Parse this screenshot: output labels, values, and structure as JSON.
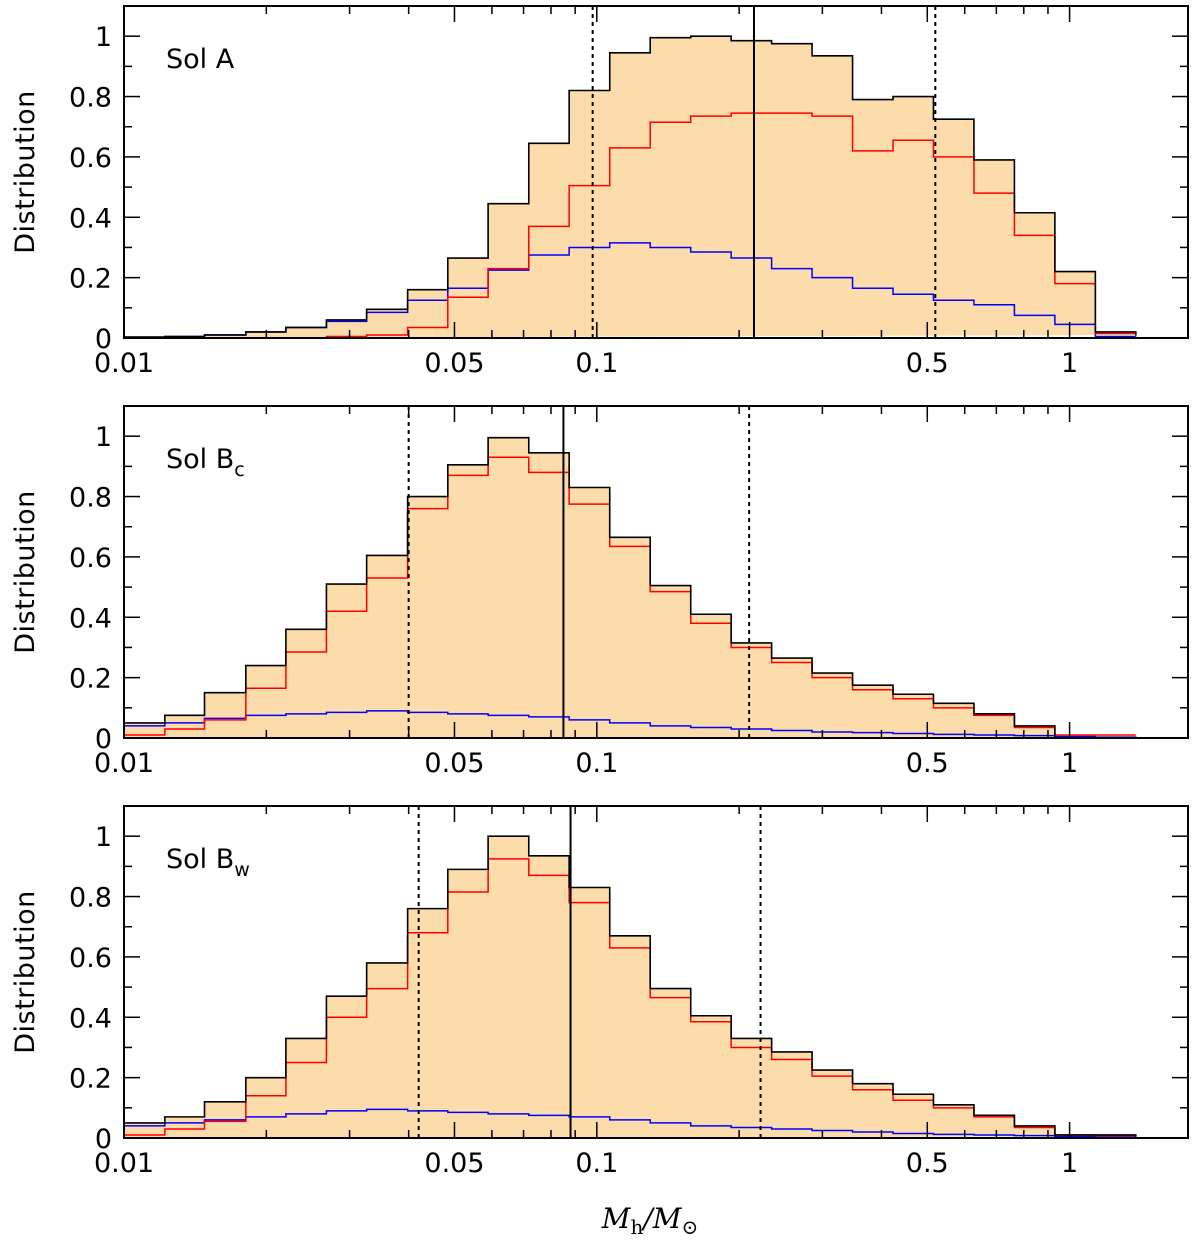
{
  "chart_data": [
    {
      "type": "histogram",
      "panel_label": "Sol A",
      "ylabel": "Distribution",
      "xlabel": "",
      "xscale": "log",
      "xlim": [
        0.01,
        1.78
      ],
      "ylim": [
        0,
        1.1
      ],
      "x_ticks": [
        0.01,
        0.05,
        0.1,
        0.5,
        1
      ],
      "x_tick_labels": [
        "0.01",
        "0.05",
        "0.1",
        "0.5",
        "1"
      ],
      "y_ticks": [
        0,
        0.2,
        0.4,
        0.6,
        0.8,
        1
      ],
      "y_tick_labels": [
        "0",
        "0.2",
        "0.4",
        "0.6",
        "0.8",
        "1"
      ],
      "bin_edges": [
        0.01,
        0.0122,
        0.0148,
        0.0181,
        0.022,
        0.0268,
        0.0326,
        0.0398,
        0.0484,
        0.0589,
        0.0718,
        0.0874,
        0.1065,
        0.1297,
        0.158,
        0.1924,
        0.2343,
        0.2853,
        0.3475,
        0.4232,
        0.5153,
        0.6276,
        0.7643,
        0.9308,
        1.1336,
        1.3805
      ],
      "series": [
        {
          "name": "total",
          "color": "#000000",
          "fill": "#fcdcaa",
          "values": [
            0.003,
            0.005,
            0.01,
            0.02,
            0.035,
            0.06,
            0.095,
            0.16,
            0.265,
            0.445,
            0.645,
            0.82,
            0.945,
            0.995,
            1.0,
            0.985,
            0.975,
            0.935,
            0.79,
            0.8,
            0.725,
            0.59,
            0.415,
            0.22,
            0.02,
            0.01
          ]
        },
        {
          "name": "red",
          "color": "#ff0000",
          "values": [
            0.0,
            0.0,
            0.0,
            0.0,
            0.0,
            0.005,
            0.01,
            0.035,
            0.135,
            0.23,
            0.37,
            0.505,
            0.63,
            0.715,
            0.735,
            0.745,
            0.745,
            0.735,
            0.62,
            0.655,
            0.6,
            0.48,
            0.34,
            0.18,
            0.015,
            0.005
          ]
        },
        {
          "name": "blue",
          "color": "#0000ff",
          "values": [
            0.003,
            0.005,
            0.01,
            0.02,
            0.035,
            0.055,
            0.085,
            0.125,
            0.165,
            0.225,
            0.275,
            0.3,
            0.315,
            0.3,
            0.285,
            0.265,
            0.23,
            0.2,
            0.165,
            0.145,
            0.125,
            0.11,
            0.075,
            0.045,
            0.005,
            0.005
          ]
        }
      ],
      "vlines": [
        {
          "x": 0.098,
          "style": "dotted"
        },
        {
          "x": 0.215,
          "style": "solid"
        },
        {
          "x": 0.52,
          "style": "dotted"
        }
      ]
    },
    {
      "type": "histogram",
      "panel_label": "Sol B",
      "panel_label_sub": "c",
      "ylabel": "Distribution",
      "xlabel": "",
      "xscale": "log",
      "xlim": [
        0.01,
        1.78
      ],
      "ylim": [
        0,
        1.1
      ],
      "x_ticks": [
        0.01,
        0.05,
        0.1,
        0.5,
        1
      ],
      "x_tick_labels": [
        "0.01",
        "0.05",
        "0.1",
        "0.5",
        "1"
      ],
      "y_ticks": [
        0,
        0.2,
        0.4,
        0.6,
        0.8,
        1
      ],
      "y_tick_labels": [
        "0",
        "0.2",
        "0.4",
        "0.6",
        "0.8",
        "1"
      ],
      "bin_edges": [
        0.01,
        0.0122,
        0.0148,
        0.0181,
        0.022,
        0.0268,
        0.0326,
        0.0398,
        0.0484,
        0.0589,
        0.0718,
        0.0874,
        0.1065,
        0.1297,
        0.158,
        0.1924,
        0.2343,
        0.2853,
        0.3475,
        0.4232,
        0.5153,
        0.6276,
        0.7643,
        0.9308,
        1.1336,
        1.3805
      ],
      "series": [
        {
          "name": "total",
          "color": "#000000",
          "fill": "#fcdcaa",
          "values": [
            0.05,
            0.075,
            0.15,
            0.24,
            0.36,
            0.51,
            0.605,
            0.8,
            0.905,
            0.995,
            0.945,
            0.83,
            0.665,
            0.505,
            0.41,
            0.315,
            0.265,
            0.215,
            0.175,
            0.145,
            0.115,
            0.08,
            0.04,
            0.0,
            0.0,
            0.0
          ]
        },
        {
          "name": "red",
          "color": "#ff0000",
          "values": [
            0.01,
            0.03,
            0.06,
            0.165,
            0.285,
            0.42,
            0.53,
            0.76,
            0.87,
            0.93,
            0.88,
            0.775,
            0.635,
            0.485,
            0.38,
            0.3,
            0.25,
            0.2,
            0.16,
            0.13,
            0.1,
            0.075,
            0.035,
            0.01,
            0.01,
            0.01
          ]
        },
        {
          "name": "blue",
          "color": "#0000ff",
          "values": [
            0.04,
            0.05,
            0.065,
            0.075,
            0.08,
            0.085,
            0.09,
            0.085,
            0.08,
            0.075,
            0.07,
            0.06,
            0.05,
            0.04,
            0.035,
            0.03,
            0.025,
            0.02,
            0.018,
            0.015,
            0.012,
            0.01,
            0.008,
            0.005,
            0.003,
            0.002
          ]
        }
      ],
      "vlines": [
        {
          "x": 0.04,
          "style": "dotted"
        },
        {
          "x": 0.085,
          "style": "solid"
        },
        {
          "x": 0.21,
          "style": "dotted"
        }
      ]
    },
    {
      "type": "histogram",
      "panel_label": "Sol B",
      "panel_label_sub": "w",
      "ylabel": "Distribution",
      "xlabel": "M_h/M_⊙",
      "xscale": "log",
      "xlim": [
        0.01,
        1.78
      ],
      "ylim": [
        0,
        1.1
      ],
      "x_ticks": [
        0.01,
        0.05,
        0.1,
        0.5,
        1
      ],
      "x_tick_labels": [
        "0.01",
        "0.05",
        "0.1",
        "0.5",
        "1"
      ],
      "y_ticks": [
        0,
        0.2,
        0.4,
        0.6,
        0.8,
        1
      ],
      "y_tick_labels": [
        "0",
        "0.2",
        "0.4",
        "0.6",
        "0.8",
        "1"
      ],
      "bin_edges": [
        0.01,
        0.0122,
        0.0148,
        0.0181,
        0.022,
        0.0268,
        0.0326,
        0.0398,
        0.0484,
        0.0589,
        0.0718,
        0.0874,
        0.1065,
        0.1297,
        0.158,
        0.1924,
        0.2343,
        0.2853,
        0.3475,
        0.4232,
        0.5153,
        0.6276,
        0.7643,
        0.9308,
        1.1336,
        1.3805
      ],
      "series": [
        {
          "name": "total",
          "color": "#000000",
          "fill": "#fcdcaa",
          "values": [
            0.05,
            0.07,
            0.12,
            0.2,
            0.33,
            0.47,
            0.58,
            0.76,
            0.89,
            1.0,
            0.935,
            0.83,
            0.67,
            0.495,
            0.405,
            0.33,
            0.285,
            0.225,
            0.18,
            0.145,
            0.11,
            0.075,
            0.04,
            0.01,
            0.01,
            0.005
          ]
        },
        {
          "name": "red",
          "color": "#ff0000",
          "values": [
            0.01,
            0.03,
            0.055,
            0.14,
            0.25,
            0.4,
            0.495,
            0.68,
            0.815,
            0.925,
            0.87,
            0.78,
            0.63,
            0.465,
            0.385,
            0.3,
            0.26,
            0.205,
            0.16,
            0.125,
            0.1,
            0.07,
            0.035,
            0.01,
            0.008,
            0.005
          ]
        },
        {
          "name": "blue",
          "color": "#0000ff",
          "values": [
            0.04,
            0.05,
            0.06,
            0.07,
            0.08,
            0.09,
            0.095,
            0.09,
            0.085,
            0.08,
            0.075,
            0.07,
            0.06,
            0.05,
            0.04,
            0.035,
            0.03,
            0.025,
            0.02,
            0.015,
            0.012,
            0.01,
            0.008,
            0.005,
            0.003,
            0.002
          ]
        }
      ],
      "vlines": [
        {
          "x": 0.042,
          "style": "dotted"
        },
        {
          "x": 0.088,
          "style": "solid"
        },
        {
          "x": 0.222,
          "style": "dotted"
        }
      ]
    }
  ],
  "xaxis_title": {
    "main": "M",
    "sub1": "h",
    "slash": "/M",
    "sub2": "⊙"
  }
}
